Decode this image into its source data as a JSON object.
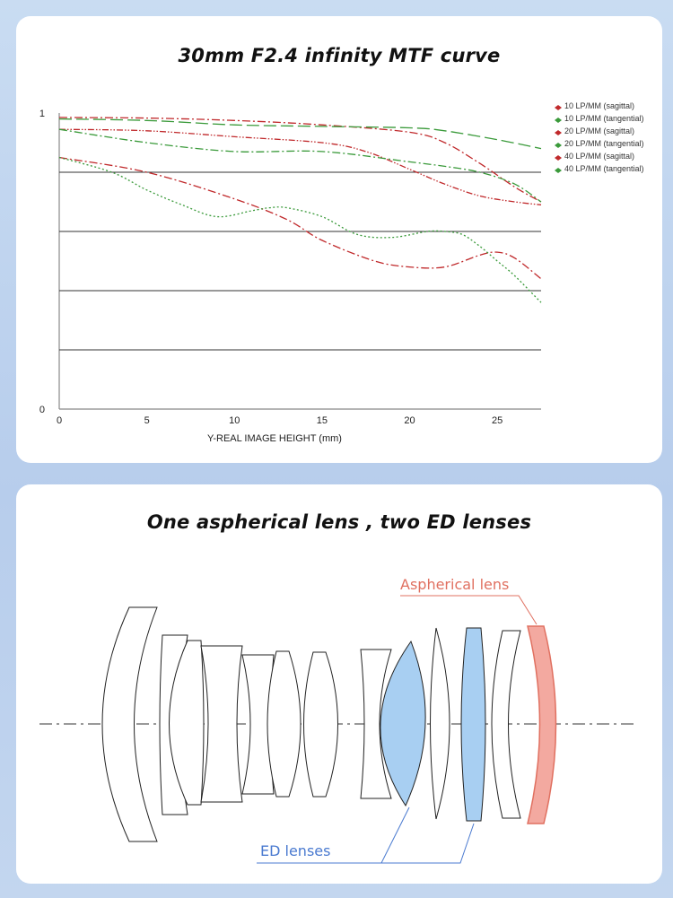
{
  "mtf": {
    "title": "30mm F2.4 infinity MTF curve"
  },
  "chart_data": {
    "type": "line",
    "title": "30mm F2.4 infinity MTF curve",
    "xlabel": "Y-REAL IMAGE HEIGHT (mm)",
    "ylabel": "",
    "xlim": [
      0,
      27.5
    ],
    "ylim": [
      0,
      1
    ],
    "x_ticks": [
      "0",
      "5",
      "10",
      "15",
      "20",
      "25"
    ],
    "y_ticks": [
      "0",
      "1"
    ],
    "grid": "horizontal at 0.2, 0.4, 0.6, 0.8",
    "legend_position": "right",
    "series": [
      {
        "name": "10 LP/MM (sagittal)",
        "color": "#c0292b",
        "dash": "dashdot",
        "x": [
          0,
          5,
          10,
          15,
          20,
          22,
          24,
          26,
          27.5
        ],
        "y": [
          0.985,
          0.983,
          0.975,
          0.96,
          0.935,
          0.9,
          0.83,
          0.75,
          0.7
        ]
      },
      {
        "name": "10 LP/MM (tangential)",
        "color": "#3a9a3a",
        "dash": "longdash",
        "x": [
          0,
          5,
          10,
          15,
          20,
          22,
          25,
          27.5
        ],
        "y": [
          0.98,
          0.975,
          0.96,
          0.955,
          0.95,
          0.94,
          0.91,
          0.88
        ]
      },
      {
        "name": "20 LP/MM (sagittal)",
        "color": "#c0292b",
        "dash": "dashdotdot",
        "x": [
          0,
          5,
          10,
          15,
          17.5,
          20,
          22,
          24,
          26,
          27.5
        ],
        "y": [
          0.945,
          0.94,
          0.92,
          0.9,
          0.87,
          0.81,
          0.76,
          0.72,
          0.7,
          0.69
        ]
      },
      {
        "name": "20 LP/MM (tangential)",
        "color": "#3a9a3a",
        "dash": "dashdot",
        "x": [
          0,
          5,
          10,
          15,
          20,
          22,
          24,
          26,
          27.5
        ],
        "y": [
          0.945,
          0.9,
          0.87,
          0.87,
          0.835,
          0.82,
          0.8,
          0.76,
          0.7
        ]
      },
      {
        "name": "40 LP/MM (sagittal)",
        "color": "#c0292b",
        "dash": "dashdot",
        "x": [
          0,
          5,
          10,
          13,
          15,
          18,
          20,
          22,
          24,
          25,
          26,
          27.5
        ],
        "y": [
          0.85,
          0.8,
          0.71,
          0.64,
          0.57,
          0.5,
          0.48,
          0.48,
          0.52,
          0.53,
          0.51,
          0.44
        ]
      },
      {
        "name": "40 LP/MM (tangential)",
        "color": "#3a9a3a",
        "dash": "dotted",
        "x": [
          0,
          3,
          5,
          7,
          9,
          11,
          12,
          13,
          15,
          17,
          19,
          21,
          22,
          23,
          24,
          25,
          26,
          27.5
        ],
        "y": [
          0.85,
          0.8,
          0.74,
          0.69,
          0.65,
          0.67,
          0.68,
          0.68,
          0.65,
          0.59,
          0.58,
          0.6,
          0.6,
          0.59,
          0.55,
          0.5,
          0.45,
          0.36
        ]
      }
    ]
  },
  "lens": {
    "title": "One aspherical lens , two ED lenses",
    "aspherical_label": "Aspherical lens",
    "ed_label": "ED lenses",
    "ed_fill": "#a8cff2",
    "asph_fill": "#f3a9a0",
    "asph_stroke": "#e07060",
    "ed_callout_color": "#4a7ad0"
  }
}
